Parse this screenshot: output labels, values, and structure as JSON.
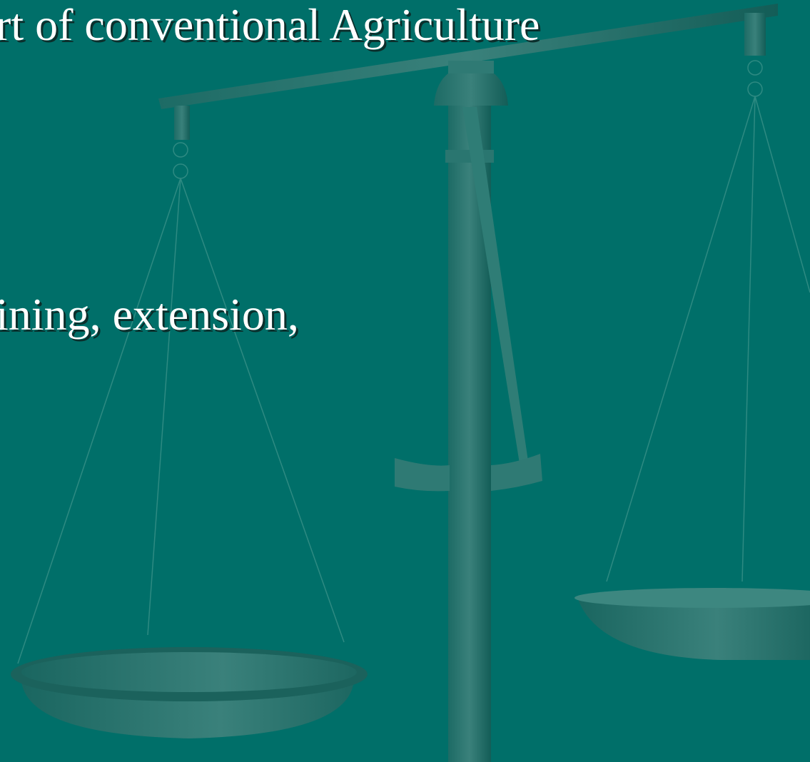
{
  "slide": {
    "lines": [
      "rt of conventional Agriculture",
      "ining, extension,"
    ]
  }
}
